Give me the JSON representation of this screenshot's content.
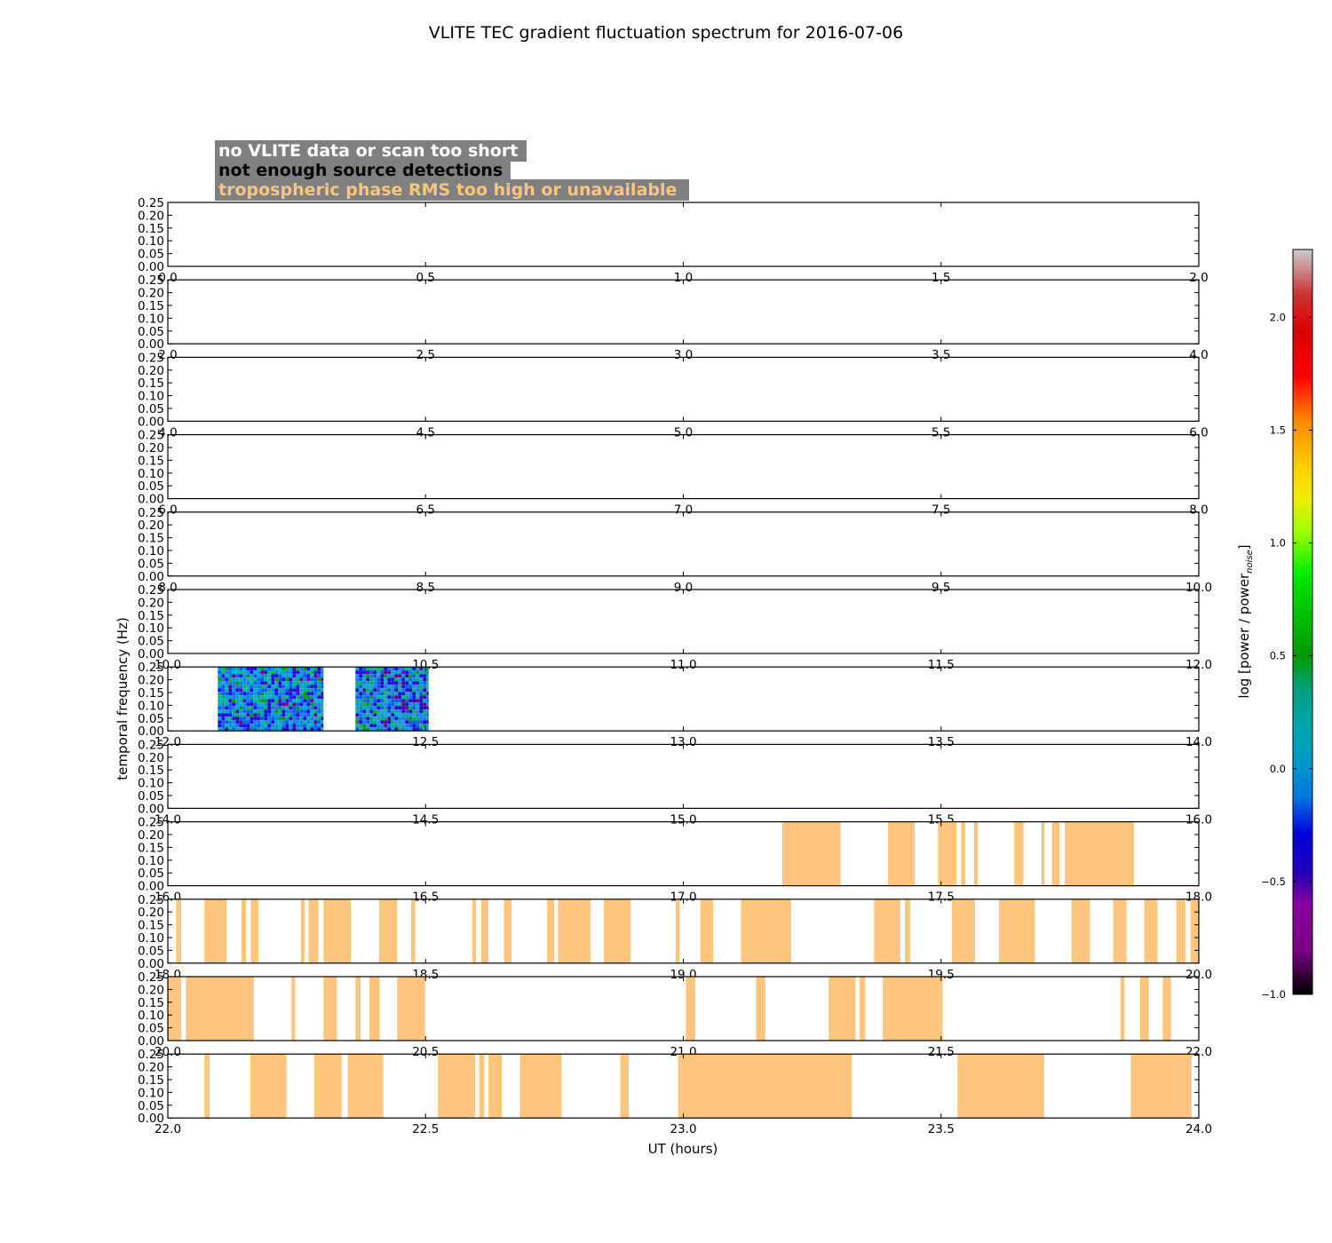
{
  "chart_data": {
    "type": "heatmap",
    "title": "VLITE TEC gradient fluctuation spectrum for 2016-07-06",
    "xlabel": "UT (hours)",
    "ylabel": "temporal frequency (Hz)",
    "ylim": [
      0,
      0.25
    ],
    "yticks": [
      "0.00",
      "0.05",
      "0.10",
      "0.15",
      "0.20",
      "0.25"
    ],
    "legend": {
      "location": "top-left",
      "items": [
        {
          "label": "no VLITE data or scan too short",
          "text_color": "#ffffff",
          "background": "#808080"
        },
        {
          "label": "not enough source detections",
          "text_color": "#000000",
          "background": "#808080"
        },
        {
          "label": "tropospheric phase RMS too high or unavailable",
          "text_color": "#fdc57e",
          "background": "#808080"
        }
      ]
    },
    "colorbar": {
      "label": "log [power / power",
      "label_subscript": "noise",
      "label_end": "]",
      "range": [
        -1.0,
        2.3
      ],
      "ticks": [
        "−1.0",
        "−0.5",
        "0.0",
        "0.5",
        "1.0",
        "1.5",
        "2.0"
      ],
      "colormap": "spectral"
    },
    "flag_colors": {
      "troposphere_flag": "#fdc57e",
      "no_data": "#ffffff"
    },
    "panels": [
      {
        "xlim": [
          0.0,
          2.0
        ],
        "xticks": [
          "0.0",
          "0.5",
          "1.0",
          "1.5",
          "2.0"
        ],
        "spectra": [],
        "flagged": []
      },
      {
        "xlim": [
          2.0,
          4.0
        ],
        "xticks": [
          "2.0",
          "2.5",
          "3.0",
          "3.5",
          "4.0"
        ],
        "spectra": [],
        "flagged": []
      },
      {
        "xlim": [
          4.0,
          6.0
        ],
        "xticks": [
          "4.0",
          "4.5",
          "5.0",
          "5.5",
          "6.0"
        ],
        "spectra": [],
        "flagged": []
      },
      {
        "xlim": [
          6.0,
          8.0
        ],
        "xticks": [
          "6.0",
          "6.5",
          "7.0",
          "7.5",
          "8.0"
        ],
        "spectra": [],
        "flagged": []
      },
      {
        "xlim": [
          8.0,
          10.0
        ],
        "xticks": [
          "8.0",
          "8.5",
          "9.0",
          "9.5",
          "10.0"
        ],
        "spectra": [],
        "flagged": []
      },
      {
        "xlim": [
          10.0,
          12.0
        ],
        "xticks": [
          "10.0",
          "10.5",
          "11.0",
          "11.5",
          "12.0"
        ],
        "spectra": [],
        "flagged": []
      },
      {
        "xlim": [
          12.0,
          14.0
        ],
        "xticks": [
          "12.0",
          "12.5",
          "13.0",
          "13.5",
          "14.0"
        ],
        "spectra": [
          [
            12.097,
            12.302
          ],
          [
            12.364,
            12.506
          ]
        ],
        "flagged": []
      },
      {
        "xlim": [
          14.0,
          16.0
        ],
        "xticks": [
          "14.0",
          "14.5",
          "15.0",
          "15.5",
          "16.0"
        ],
        "spectra": [],
        "flagged": []
      },
      {
        "xlim": [
          16.0,
          18.0
        ],
        "xticks": [
          "16.0",
          "16.5",
          "17.0",
          "17.5",
          "18.0"
        ],
        "spectra": [],
        "flagged": [
          [
            17.192,
            17.305
          ],
          [
            17.397,
            17.449
          ],
          [
            17.494,
            17.53
          ],
          [
            17.539,
            17.547
          ],
          [
            17.564,
            17.571
          ],
          [
            17.642,
            17.66
          ],
          [
            17.695,
            17.701
          ],
          [
            17.715,
            17.73
          ],
          [
            17.74,
            17.874
          ]
        ]
      },
      {
        "xlim": [
          18.0,
          20.0
        ],
        "xticks": [
          "18.0",
          "18.5",
          "19.0",
          "19.5",
          "20.0"
        ],
        "spectra": [],
        "flagged": [
          [
            18.016,
            18.026
          ],
          [
            18.071,
            18.114
          ],
          [
            18.143,
            18.152
          ],
          [
            18.161,
            18.176
          ],
          [
            18.258,
            18.265
          ],
          [
            18.273,
            18.292
          ],
          [
            18.302,
            18.355
          ],
          [
            18.41,
            18.445
          ],
          [
            18.472,
            18.48
          ],
          [
            18.591,
            18.598
          ],
          [
            18.608,
            18.622
          ],
          [
            18.652,
            18.667
          ],
          [
            18.736,
            18.75
          ],
          [
            18.757,
            18.82
          ],
          [
            18.846,
            18.898
          ],
          [
            18.985,
            18.993
          ],
          [
            19.033,
            19.058
          ],
          [
            19.112,
            19.209
          ],
          [
            19.37,
            19.421
          ],
          [
            19.43,
            19.44
          ],
          [
            19.521,
            19.566
          ],
          [
            19.612,
            19.682
          ],
          [
            19.753,
            19.789
          ],
          [
            19.834,
            19.86
          ],
          [
            19.894,
            19.92
          ],
          [
            19.956,
            19.974
          ],
          [
            19.984,
            20.0
          ]
        ]
      },
      {
        "xlim": [
          20.0,
          22.0
        ],
        "xticks": [
          "20.0",
          "20.5",
          "21.0",
          "21.5",
          "22.0"
        ],
        "spectra": [],
        "flagged": [
          [
            20.0,
            20.026
          ],
          [
            20.035,
            20.167
          ],
          [
            20.24,
            20.247
          ],
          [
            20.302,
            20.328
          ],
          [
            20.364,
            20.374
          ],
          [
            20.391,
            20.411
          ],
          [
            20.445,
            20.499
          ],
          [
            21.005,
            21.023
          ],
          [
            21.141,
            21.159
          ],
          [
            21.282,
            21.334
          ],
          [
            21.342,
            21.353
          ],
          [
            21.387,
            21.503
          ],
          [
            21.848,
            21.856
          ],
          [
            21.886,
            21.903
          ],
          [
            21.93,
            21.946
          ]
        ]
      },
      {
        "xlim": [
          22.0,
          24.0
        ],
        "xticks": [
          "22.0",
          "22.5",
          "23.0",
          "23.5",
          "24.0"
        ],
        "spectra": [],
        "flagged": [
          [
            22.071,
            22.081
          ],
          [
            22.16,
            22.23
          ],
          [
            22.284,
            22.337
          ],
          [
            22.349,
            22.418
          ],
          [
            22.524,
            22.596
          ],
          [
            22.604,
            22.614
          ],
          [
            22.622,
            22.648
          ],
          [
            22.683,
            22.764
          ],
          [
            22.878,
            22.894
          ],
          [
            22.99,
            23.327
          ],
          [
            23.532,
            23.7
          ],
          [
            23.868,
            23.986
          ]
        ]
      }
    ]
  }
}
